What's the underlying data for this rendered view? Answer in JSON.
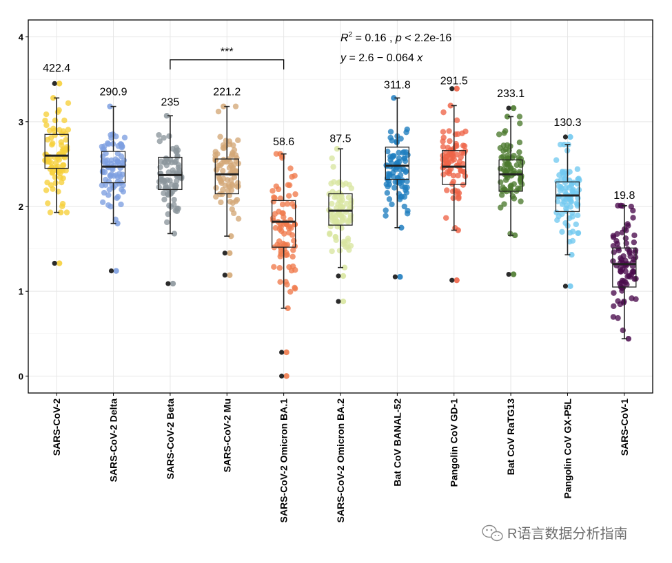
{
  "chart_data": {
    "type": "box",
    "title": "",
    "xlabel": "",
    "ylabel": "",
    "ylim": [
      -0.2,
      4.2
    ],
    "yticks": [
      0,
      1,
      2,
      3,
      4
    ],
    "grid": true,
    "categories": [
      "SARS-CoV-2",
      "SARS-CoV-2 Delta",
      "SARS-CoV-2 Beta",
      "SARS-CoV-2 Mu",
      "SARS-CoV-2 Omicron BA.1",
      "SARS-CoV-2 Omicron BA.2",
      "Bat CoV BANAL-52",
      "Pangolin CoV GD-1",
      "Bat CoV RaTG13",
      "Pangolin CoV GX-P5L",
      "SARS-CoV-1"
    ],
    "colors": [
      "#f6cf3a",
      "#7d9fe0",
      "#8c969c",
      "#d4a877",
      "#f07a4b",
      "#d8e5a0",
      "#1f7dbf",
      "#ee6448",
      "#4b7a2e",
      "#72c9ef",
      "#4a0b4d"
    ],
    "boxes": [
      {
        "q1": 2.45,
        "median": 2.6,
        "q3": 2.85,
        "whisker_low": 1.93,
        "whisker_high": 3.28,
        "outliers": [
          1.33,
          3.45
        ]
      },
      {
        "q1": 2.28,
        "median": 2.47,
        "q3": 2.65,
        "whisker_low": 1.8,
        "whisker_high": 3.18,
        "outliers": [
          1.24
        ]
      },
      {
        "q1": 2.2,
        "median": 2.37,
        "q3": 2.58,
        "whisker_low": 1.68,
        "whisker_high": 3.07,
        "outliers": [
          1.09
        ]
      },
      {
        "q1": 2.15,
        "median": 2.38,
        "q3": 2.56,
        "whisker_low": 1.65,
        "whisker_high": 3.18,
        "outliers": [
          1.19,
          1.45
        ]
      },
      {
        "q1": 1.52,
        "median": 1.82,
        "q3": 2.07,
        "whisker_low": 0.8,
        "whisker_high": 2.62,
        "outliers": [
          0.0,
          0.28
        ]
      },
      {
        "q1": 1.78,
        "median": 1.95,
        "q3": 2.15,
        "whisker_low": 1.28,
        "whisker_high": 2.68,
        "outliers": [
          0.88,
          1.18
        ]
      },
      {
        "q1": 2.32,
        "median": 2.48,
        "q3": 2.7,
        "whisker_low": 1.75,
        "whisker_high": 3.28,
        "outliers": [
          1.17
        ]
      },
      {
        "q1": 2.26,
        "median": 2.47,
        "q3": 2.66,
        "whisker_low": 1.72,
        "whisker_high": 3.19,
        "outliers": [
          1.13,
          3.39
        ]
      },
      {
        "q1": 2.18,
        "median": 2.38,
        "q3": 2.55,
        "whisker_low": 1.66,
        "whisker_high": 3.06,
        "outliers": [
          1.2,
          3.16
        ]
      },
      {
        "q1": 1.94,
        "median": 2.13,
        "q3": 2.29,
        "whisker_low": 1.43,
        "whisker_high": 2.73,
        "outliers": [
          1.06,
          2.82
        ]
      },
      {
        "q1": 1.05,
        "median": 1.32,
        "q3": 1.51,
        "whisker_low": 0.44,
        "whisker_high": 2.01,
        "outliers": []
      }
    ],
    "top_labels": [
      "422.4",
      "290.9",
      "235",
      "221.2",
      "58.6",
      "87.5",
      "311.8",
      "291.5",
      "233.1",
      "130.3",
      "19.8"
    ],
    "top_label_y": [
      3.55,
      3.27,
      3.15,
      3.27,
      2.68,
      2.72,
      3.35,
      3.4,
      3.25,
      2.91,
      2.05
    ],
    "significance": {
      "from_index": 2,
      "to_index": 4,
      "y": 3.73,
      "label": "***"
    },
    "annotation": {
      "r_sym": "R",
      "r_sup": "2",
      "r_rest": " = 0.16 , ",
      "p_sym": "p",
      "p_rest": " < 2.2e-16",
      "eq_y": "y",
      "eq_mid": " = 2.6 − 0.064 ",
      "eq_x": "x"
    }
  },
  "watermark": "R语言数据分析指南"
}
